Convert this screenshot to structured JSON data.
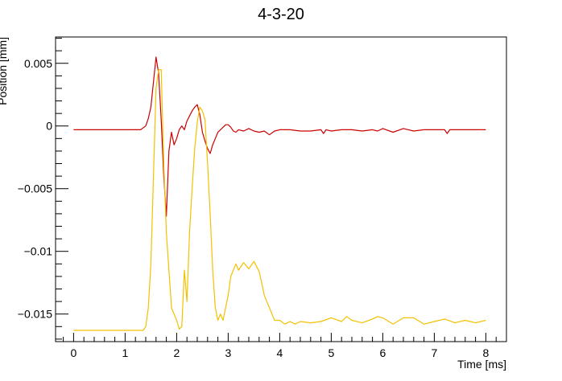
{
  "chart_data": {
    "type": "line",
    "title": "4-3-20",
    "xlabel": "Time [ms]",
    "ylabel": "Position [mm]",
    "xlim": [
      -0.35,
      8.4
    ],
    "ylim": [
      -0.0172,
      0.0071
    ],
    "xticks": [
      0,
      1,
      2,
      3,
      4,
      5,
      6,
      7,
      8
    ],
    "xtick_labels": [
      "0",
      "1",
      "2",
      "3",
      "4",
      "5",
      "6",
      "7",
      "8"
    ],
    "yticks": [
      0.005,
      0,
      -0.005,
      -0.01,
      -0.015
    ],
    "ytick_labels": [
      "0.005",
      "0",
      "−0.005",
      "−0.01",
      "−0.015"
    ],
    "grid": false,
    "series": [
      {
        "color": "#cc0000",
        "x": [
          0.0,
          1.3,
          1.4,
          1.45,
          1.5,
          1.55,
          1.6,
          1.65,
          1.7,
          1.75,
          1.8,
          1.85,
          1.9,
          1.95,
          2.0,
          2.05,
          2.1,
          2.15,
          2.2,
          2.25,
          2.3,
          2.35,
          2.4,
          2.45,
          2.5,
          2.55,
          2.6,
          2.65,
          2.7,
          2.75,
          2.8,
          2.85,
          2.9,
          2.95,
          3.0,
          3.05,
          3.1,
          3.15,
          3.2,
          3.3,
          3.4,
          3.5,
          3.6,
          3.7,
          3.8,
          3.9,
          4.0,
          4.2,
          4.4,
          4.6,
          4.8,
          4.85,
          4.9,
          5.0,
          5.2,
          5.4,
          5.6,
          5.8,
          5.9,
          6.0,
          6.2,
          6.4,
          6.6,
          6.8,
          7.0,
          7.2,
          7.25,
          7.3,
          7.5,
          8.0
        ],
        "y": [
          -0.0003,
          -0.0003,
          0.0,
          0.0006,
          0.0015,
          0.0035,
          0.0055,
          0.0042,
          0.0005,
          -0.004,
          -0.0072,
          -0.002,
          -0.0005,
          -0.0015,
          -0.001,
          -0.0003,
          0.0,
          -0.0003,
          0.0004,
          0.0008,
          0.0012,
          0.0015,
          0.0017,
          0.0009,
          -0.0005,
          -0.0012,
          -0.0018,
          -0.0022,
          -0.0015,
          -0.001,
          -0.0005,
          -0.0003,
          -0.0001,
          0.0001,
          0.0001,
          -0.0001,
          -0.0004,
          -0.0005,
          -0.0003,
          -0.0004,
          -0.0002,
          -0.0004,
          -0.0005,
          -0.0004,
          -0.0007,
          -0.0004,
          -0.0003,
          -0.0003,
          -0.0004,
          -0.0004,
          -0.0003,
          -0.0006,
          -0.0003,
          -0.0004,
          -0.0003,
          -0.0003,
          -0.0004,
          -0.0003,
          -0.0004,
          -0.0002,
          -0.0005,
          -0.0002,
          -0.0004,
          -0.0003,
          -0.0003,
          -0.0003,
          -0.0006,
          -0.0003,
          -0.0003,
          -0.0003
        ]
      },
      {
        "color": "#f2c100",
        "x": [
          0.0,
          1.35,
          1.4,
          1.45,
          1.5,
          1.55,
          1.6,
          1.65,
          1.7,
          1.75,
          1.8,
          1.85,
          1.9,
          1.95,
          2.0,
          2.05,
          2.1,
          2.15,
          2.2,
          2.25,
          2.3,
          2.35,
          2.4,
          2.45,
          2.5,
          2.55,
          2.6,
          2.65,
          2.7,
          2.75,
          2.8,
          2.85,
          2.9,
          2.95,
          3.0,
          3.05,
          3.1,
          3.15,
          3.2,
          3.3,
          3.4,
          3.5,
          3.6,
          3.65,
          3.7,
          3.8,
          3.9,
          4.0,
          4.1,
          4.2,
          4.3,
          4.4,
          4.6,
          4.8,
          5.0,
          5.2,
          5.3,
          5.4,
          5.6,
          5.8,
          5.9,
          6.0,
          6.2,
          6.4,
          6.6,
          6.8,
          7.0,
          7.2,
          7.4,
          7.6,
          7.8,
          8.0
        ],
        "y": [
          -0.0163,
          -0.0163,
          -0.016,
          -0.0145,
          -0.011,
          -0.004,
          0.003,
          0.0045,
          0.0045,
          -0.003,
          -0.0085,
          -0.0115,
          -0.0145,
          -0.015,
          -0.0155,
          -0.0162,
          -0.016,
          -0.0115,
          -0.014,
          -0.0085,
          -0.005,
          -0.0018,
          0.0003,
          0.0015,
          0.0012,
          0.0005,
          -0.003,
          -0.007,
          -0.0115,
          -0.0145,
          -0.0155,
          -0.015,
          -0.0155,
          -0.0145,
          -0.0135,
          -0.012,
          -0.0115,
          -0.011,
          -0.0115,
          -0.0109,
          -0.0114,
          -0.0108,
          -0.0116,
          -0.0125,
          -0.0135,
          -0.0145,
          -0.0155,
          -0.0155,
          -0.0158,
          -0.0156,
          -0.0158,
          -0.0156,
          -0.0157,
          -0.0156,
          -0.0153,
          -0.0156,
          -0.0152,
          -0.0155,
          -0.0157,
          -0.0154,
          -0.0152,
          -0.0153,
          -0.0158,
          -0.0153,
          -0.0153,
          -0.0158,
          -0.0156,
          -0.0154,
          -0.0157,
          -0.0155,
          -0.0157,
          -0.0155
        ]
      }
    ]
  }
}
